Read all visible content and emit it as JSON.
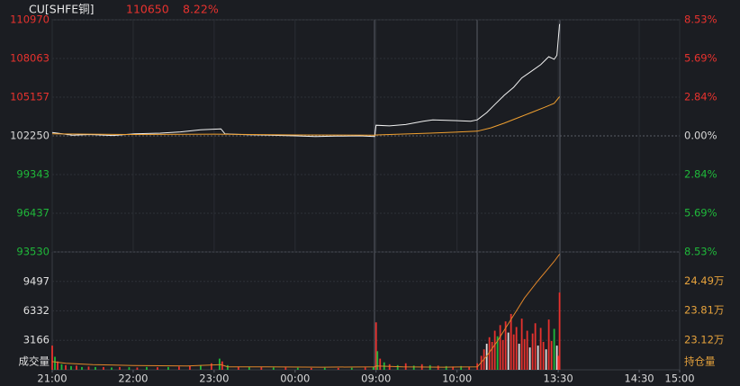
{
  "header": {
    "symbol": "CU[SHFE铜]",
    "last": "110650",
    "change": "8.22%"
  },
  "chart_data": [
    {
      "type": "line",
      "xlim": [
        0,
        465
      ],
      "ylim": [
        93530,
        110970
      ],
      "yticks": [
        110970,
        108063,
        105157,
        102250,
        99343,
        96437,
        93530
      ],
      "ytick_colors": [
        "#e8322e",
        "#e8322e",
        "#e8322e",
        "#d8d8d8",
        "#1fb83a",
        "#1fb83a",
        "#1fb83a"
      ],
      "y2lim": [
        -8.53,
        8.53
      ],
      "y2ticks": [
        {
          "value": 8.53,
          "label": "8.53%"
        },
        {
          "value": 5.69,
          "label": "5.69%"
        },
        {
          "value": 2.84,
          "label": "2.84%"
        },
        {
          "value": 0,
          "label": "0.00%"
        },
        {
          "value": -2.84,
          "label": "2.84%"
        },
        {
          "value": -5.69,
          "label": "5.69%"
        },
        {
          "value": -8.53,
          "label": "8.53%"
        }
      ],
      "series": [
        {
          "color": "#f2f2f2",
          "x": [
            0,
            15,
            28,
            45,
            61,
            80,
            95,
            110,
            125,
            128,
            145,
            161,
            180,
            195,
            210,
            228,
            239,
            240,
            250,
            262,
            275,
            282,
            298,
            310,
            315,
            322,
            328,
            335,
            342,
            348,
            355,
            362,
            368,
            372,
            374,
            376
          ],
          "values": [
            102500,
            102300,
            102350,
            102280,
            102400,
            102450,
            102550,
            102700,
            102780,
            102400,
            102330,
            102300,
            102250,
            102200,
            102230,
            102250,
            102200,
            103050,
            103000,
            103100,
            103350,
            103450,
            103400,
            103350,
            103450,
            104000,
            104600,
            105300,
            105900,
            106600,
            107100,
            107600,
            108200,
            108000,
            108300,
            110650
          ]
        },
        {
          "color": "#f0a030",
          "x": [
            0,
            60,
            120,
            180,
            239,
            240,
            280,
            315,
            325,
            335,
            345,
            355,
            365,
            372,
            376
          ],
          "values": [
            102400,
            102350,
            102380,
            102320,
            102300,
            102320,
            102450,
            102600,
            102850,
            103200,
            103600,
            104000,
            104400,
            104700,
            105200
          ]
        }
      ]
    },
    {
      "type": "bar",
      "ylabel": "成交量",
      "y2label": "持仓量",
      "xlim": [
        0,
        465
      ],
      "xticks": [
        {
          "value": 0,
          "label": "21:00"
        },
        {
          "value": 60,
          "label": "22:00"
        },
        {
          "value": 120,
          "label": "23:00"
        },
        {
          "value": 180,
          "label": "00:00"
        },
        {
          "value": 240,
          "label": "09:00"
        },
        {
          "value": 300,
          "label": "10:00"
        },
        {
          "value": 375,
          "label": "13:30"
        },
        {
          "value": 435,
          "label": "14:30"
        },
        {
          "value": 465,
          "label": "15:00"
        }
      ],
      "ylim": [
        0,
        12663
      ],
      "yticks": [
        9497,
        6332,
        3166
      ],
      "y2lim": [
        22.43,
        25.17
      ],
      "y2ticks": [
        {
          "value": 24.49,
          "label": "24.49万"
        },
        {
          "value": 23.81,
          "label": "23.81万"
        },
        {
          "value": 23.12,
          "label": "23.12万"
        }
      ],
      "bars": {
        "x": [
          0,
          2,
          4,
          7,
          10,
          14,
          18,
          22,
          27,
          32,
          38,
          44,
          50,
          57,
          63,
          70,
          78,
          86,
          94,
          102,
          110,
          118,
          124,
          126,
          130,
          138,
          146,
          155,
          164,
          173,
          182,
          192,
          202,
          212,
          222,
          232,
          238,
          240,
          241,
          243,
          246,
          250,
          256,
          262,
          268,
          274,
          280,
          286,
          292,
          297,
          303,
          309,
          315,
          318,
          320,
          322,
          324,
          326,
          328,
          330,
          332,
          334,
          336,
          338,
          340,
          342,
          344,
          346,
          348,
          350,
          352,
          354,
          356,
          358,
          360,
          362,
          364,
          366,
          368,
          370,
          372,
          374,
          375,
          376
        ],
        "values": [
          2600,
          1400,
          900,
          600,
          500,
          400,
          450,
          300,
          350,
          300,
          300,
          250,
          300,
          280,
          250,
          300,
          280,
          300,
          350,
          400,
          500,
          700,
          1200,
          900,
          500,
          350,
          300,
          280,
          250,
          250,
          220,
          200,
          220,
          200,
          220,
          250,
          300,
          5100,
          2000,
          1200,
          800,
          600,
          500,
          700,
          450,
          600,
          500,
          450,
          400,
          350,
          400,
          350,
          700,
          1500,
          2200,
          2800,
          3500,
          3000,
          4200,
          3600,
          4800,
          3200,
          5200,
          4000,
          6000,
          3800,
          4600,
          2800,
          5500,
          3300,
          4200,
          2400,
          3900,
          5000,
          2600,
          4500,
          3000,
          2200,
          5400,
          3100,
          4400,
          2600,
          1500,
          8300
        ],
        "colors": [
          "#e8322e",
          "#1fb83a",
          "#e8322e",
          "#1fb83a",
          "#e8322e",
          "#1fb83a",
          "#e8322e",
          "#1fb83a",
          "#e8322e",
          "#1fb83a",
          "#e8322e",
          "#1fb83a",
          "#e8322e",
          "#1fb83a",
          "#e8322e",
          "#1fb83a",
          "#e8322e",
          "#1fb83a",
          "#e8322e",
          "#e8322e",
          "#1fb83a",
          "#e8322e",
          "#1fb83a",
          "#e8322e",
          "#1fb83a",
          "#e8322e",
          "#1fb83a",
          "#e8322e",
          "#1fb83a",
          "#e8322e",
          "#1fb83a",
          "#e8322e",
          "#1fb83a",
          "#e8322e",
          "#1fb83a",
          "#e8322e",
          "#1fb83a",
          "#e8322e",
          "#1fb83a",
          "#e8322e",
          "#1fb83a",
          "#e8322e",
          "#1fb83a",
          "#e8322e",
          "#1fb83a",
          "#e8322e",
          "#1fb83a",
          "#e8322e",
          "#1fb83a",
          "#e8322e",
          "#1fb83a",
          "#e8322e",
          "#e8322e",
          "#e8322e",
          "#e8322e",
          "#e0e0e0",
          "#e8322e",
          "#e8322e",
          "#e8322e",
          "#1fb83a",
          "#e8322e",
          "#e8322e",
          "#e8322e",
          "#e0e0e0",
          "#e8322e",
          "#e8322e",
          "#e8322e",
          "#e0e0e0",
          "#e8322e",
          "#e8322e",
          "#e8322e",
          "#e0e0e0",
          "#e8322e",
          "#e8322e",
          "#e0e0e0",
          "#e8322e",
          "#e8322e",
          "#e0e0e0",
          "#e8322e",
          "#e8322e",
          "#1fb83a",
          "#e0e0e0",
          "#e8322e",
          "#e8322e"
        ]
      },
      "series": [
        {
          "color": "#e0862a",
          "axis": "y2",
          "x": [
            0,
            10,
            30,
            60,
            100,
            125,
            130,
            160,
            200,
            239,
            240,
            260,
            290,
            315,
            322,
            330,
            340,
            350,
            360,
            368,
            372,
            376
          ],
          "values": [
            22.62,
            22.58,
            22.55,
            22.53,
            22.52,
            22.55,
            22.5,
            22.5,
            22.49,
            22.5,
            22.52,
            22.5,
            22.49,
            22.5,
            22.75,
            23.1,
            23.6,
            24.1,
            24.5,
            24.8,
            24.95,
            25.12
          ]
        }
      ]
    }
  ]
}
